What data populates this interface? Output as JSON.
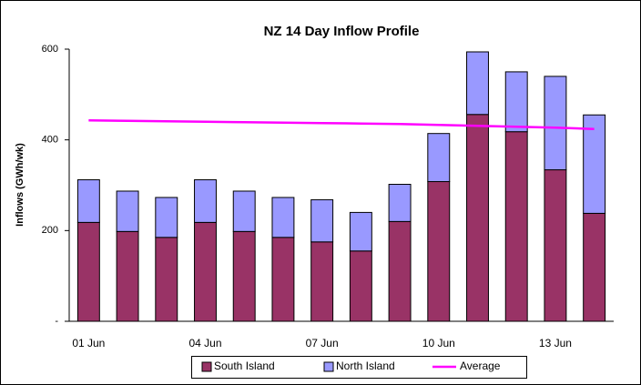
{
  "chart_data": {
    "type": "bar",
    "title": "NZ 14 Day Inflow Profile",
    "y_label": "Inflows (GWh/wk)",
    "stacked": true,
    "categories": [
      "01 Jun",
      null,
      null,
      "04 Jun",
      null,
      null,
      "07 Jun",
      null,
      null,
      "10 Jun",
      null,
      null,
      "13 Jun",
      null
    ],
    "series": [
      {
        "name": "South Island",
        "type": "bar",
        "color": "#993366",
        "values": [
          218,
          198,
          185,
          218,
          198,
          185,
          175,
          155,
          220,
          308,
          456,
          418,
          334,
          238
        ]
      },
      {
        "name": "North Island",
        "type": "bar",
        "color": "#9999ff",
        "values": [
          94,
          89,
          88,
          94,
          89,
          88,
          93,
          85,
          82,
          106,
          138,
          132,
          206,
          217
        ]
      },
      {
        "name": "Average",
        "type": "line",
        "color": "#ff00ff",
        "values": [
          443,
          442,
          441,
          440,
          439,
          438,
          437,
          436,
          435,
          433,
          431,
          429,
          427,
          424
        ]
      }
    ],
    "ylim": [
      0,
      600
    ],
    "yticks": [
      {
        "value": 0,
        "label": "-"
      },
      200,
      400,
      600
    ],
    "legend": "bottom"
  }
}
